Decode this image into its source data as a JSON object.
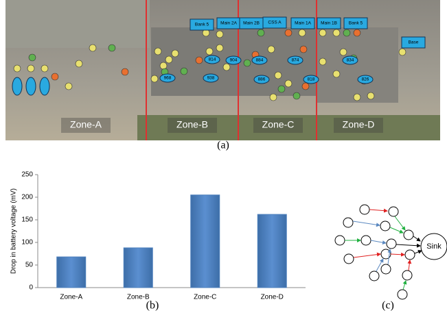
{
  "figure_a": {
    "caption": "(a)",
    "zones": [
      "Zone-A",
      "Zone-B",
      "Zone-C",
      "Zone-D"
    ],
    "buildings": [
      "Bank 5",
      "Main 2A",
      "Main 2B",
      "CSS A",
      "Main 1A",
      "Main 1B",
      "Bank 5",
      "Base"
    ],
    "nodes": [
      "968",
      "938",
      "814",
      "904",
      "884",
      "874",
      "834",
      "886",
      "818",
      "826"
    ]
  },
  "chart_data": {
    "type": "bar",
    "caption": "(b)",
    "y_label": "Drop in battery voltage (mV)",
    "categories": [
      "Zone-A",
      "Zone-B",
      "Zone-C",
      "Zone-D"
    ],
    "values": [
      68,
      88,
      205,
      162
    ],
    "color": "#4f81bd",
    "ylim": [
      0,
      250
    ],
    "yticks": [
      0,
      50,
      100,
      150,
      200,
      250
    ],
    "grid": false
  },
  "figure_c": {
    "sink": "Sink",
    "caption": "(c)"
  }
}
